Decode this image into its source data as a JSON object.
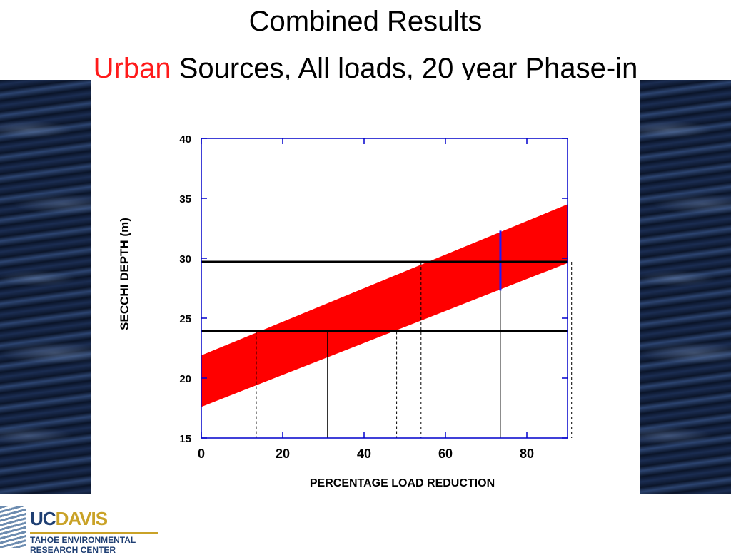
{
  "slide": {
    "title": "Combined Results",
    "subtitle_accent": "Urban",
    "subtitle_rest": " Sources, All loads, 20 year Phase-in"
  },
  "colors": {
    "accent": "#ff1a1a",
    "band": "#ff0000",
    "axis": "#0000cc",
    "marker": "#1a1aff",
    "lines": "#000000"
  },
  "logo": {
    "uc": "UC",
    "davis": "DAVIS",
    "line1": "TAHOE ENVIRONMENTAL",
    "line2": "RESEARCH CENTER"
  },
  "chart_data": {
    "type": "area",
    "xlabel": "PERCENTAGE LOAD REDUCTION",
    "ylabel": "SECCHI DEPTH (m)",
    "xlim": [
      0,
      90
    ],
    "ylim": [
      15,
      40
    ],
    "xticks": [
      0,
      20,
      40,
      60,
      80
    ],
    "yticks": [
      15,
      20,
      25,
      30,
      35,
      40
    ],
    "grid": false,
    "band": {
      "x": [
        0,
        90
      ],
      "lower": [
        17.6,
        29.6
      ],
      "upper": [
        21.9,
        34.5
      ]
    },
    "horizontal_lines": [
      29.7,
      23.9
    ],
    "vertical_lines": [
      {
        "x": 13.5,
        "y_top": 23.9,
        "style": "dashed"
      },
      {
        "x": 31,
        "y_top": 23.9,
        "style": "solid"
      },
      {
        "x": 48,
        "y_top": 23.9,
        "style": "dashed"
      },
      {
        "x": 54,
        "y_top": 29.7,
        "style": "dashed"
      },
      {
        "x": 73.5,
        "y_top": 27.3,
        "style": "solid"
      },
      {
        "x": 91,
        "y_top": 29.7,
        "style": "dashed"
      }
    ],
    "highlight_segment": {
      "x": 73.5,
      "y_low": 27.3,
      "y_high": 32.3
    }
  }
}
